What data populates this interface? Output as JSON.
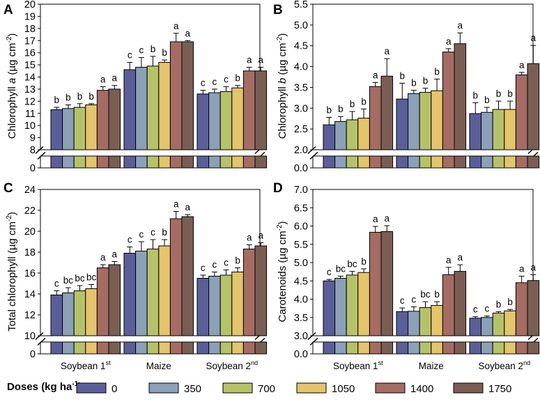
{
  "figure": {
    "legend": {
      "title_main": "Doses (kg ha",
      "title_exp": "-1",
      "title_close": ")",
      "labels": [
        "0",
        "350",
        "700",
        "1050",
        "1400",
        "1750"
      ]
    },
    "colors": [
      "#5b5f99",
      "#8ca0b8",
      "#b6c26a",
      "#e4c46c",
      "#a56c64",
      "#7a5e54"
    ],
    "groups": [
      {
        "base": "Soybean 1",
        "sup": "st"
      },
      {
        "base": "Maize",
        "sup": ""
      },
      {
        "base": "Soybean 2",
        "sup": "nd"
      }
    ]
  },
  "chart_data": [
    {
      "type": "bar",
      "panel_label": "A",
      "ylabel_pre": "Chlorophyll ",
      "ylabel_italic": "a",
      "ylabel_unit": " (µg cm",
      "ylabel_exp": "-2",
      "ylabel_close": ")",
      "upper_ylim": [
        8,
        20
      ],
      "upper_ticks": [
        "8",
        "9",
        "10",
        "11",
        "12",
        "13",
        "14",
        "15",
        "16",
        "17",
        "18",
        "19",
        "20"
      ],
      "lower_tick": "0",
      "series": [
        {
          "group": "Soybean 1st",
          "values": [
            11.3,
            11.4,
            11.5,
            11.7,
            12.9,
            13.0
          ],
          "errors": [
            0.2,
            0.3,
            0.3,
            0.1,
            0.3,
            0.3
          ],
          "letters": [
            "b",
            "b",
            "b",
            "b",
            "a",
            "a"
          ]
        },
        {
          "group": "Maize",
          "values": [
            14.6,
            14.8,
            14.9,
            15.2,
            16.9,
            16.9
          ],
          "errors": [
            0.6,
            0.8,
            0.8,
            0.2,
            0.7,
            0.1
          ],
          "letters": [
            "c",
            "c",
            "b",
            "b",
            "a",
            "a"
          ]
        },
        {
          "group": "Soybean 2nd",
          "values": [
            12.6,
            12.7,
            12.8,
            13.1,
            14.5,
            14.5
          ],
          "errors": [
            0.3,
            0.3,
            0.4,
            0.2,
            0.3,
            0.3
          ],
          "letters": [
            "c",
            "c",
            "c",
            "b",
            "a",
            "a"
          ]
        }
      ]
    },
    {
      "type": "bar",
      "panel_label": "B",
      "ylabel_pre": "Chlorophyll ",
      "ylabel_italic": "b",
      "ylabel_unit": " (µg cm",
      "ylabel_exp": "-2",
      "ylabel_close": ")",
      "upper_ylim": [
        2.0,
        5.5
      ],
      "upper_ticks": [
        "2.0",
        "2.5",
        "3.0",
        "3.5",
        "4.0",
        "4.5",
        "5.0",
        "5.5"
      ],
      "lower_tick": "0.0",
      "series": [
        {
          "group": "Soybean 1st",
          "values": [
            2.6,
            2.68,
            2.72,
            2.76,
            3.52,
            3.77
          ],
          "errors": [
            0.18,
            0.12,
            0.2,
            0.22,
            0.1,
            0.42
          ],
          "letters": [
            "b",
            "b",
            "b",
            "b",
            "a",
            "a"
          ]
        },
        {
          "group": "Maize",
          "values": [
            3.22,
            3.35,
            3.38,
            3.42,
            4.35,
            4.55
          ],
          "errors": [
            0.38,
            0.08,
            0.1,
            0.28,
            0.08,
            0.26
          ],
          "letters": [
            "b",
            "b",
            "b",
            "b",
            "a",
            "a"
          ]
        },
        {
          "group": "Soybean 2nd",
          "values": [
            2.87,
            2.9,
            2.97,
            2.97,
            3.8,
            4.07
          ],
          "errors": [
            0.26,
            0.12,
            0.2,
            0.2,
            0.06,
            0.44
          ],
          "letters": [
            "b",
            "b",
            "b",
            "b",
            "a",
            "a"
          ]
        }
      ]
    },
    {
      "type": "bar",
      "panel_label": "C",
      "ylabel_pre": "Total chlorophyll",
      "ylabel_italic": "",
      "ylabel_unit": " (µg cm",
      "ylabel_exp": "-2",
      "ylabel_close": ")",
      "upper_ylim": [
        10,
        24
      ],
      "upper_ticks": [
        "10",
        "12",
        "14",
        "16",
        "18",
        "20",
        "22",
        "24"
      ],
      "lower_tick": "0",
      "series": [
        {
          "group": "Soybean 1st",
          "values": [
            13.9,
            14.1,
            14.3,
            14.5,
            16.5,
            16.8
          ],
          "errors": [
            0.4,
            0.5,
            0.5,
            0.4,
            0.3,
            0.3
          ],
          "letters": [
            "c",
            "bc",
            "bc",
            "bc",
            "a",
            "a"
          ]
        },
        {
          "group": "Maize",
          "values": [
            17.9,
            18.1,
            18.3,
            18.6,
            21.2,
            21.4
          ],
          "errors": [
            0.6,
            0.9,
            0.9,
            0.6,
            0.7,
            0.2
          ],
          "letters": [
            "c",
            "c",
            "c",
            "b",
            "a",
            "a"
          ]
        },
        {
          "group": "Soybean 2nd",
          "values": [
            15.5,
            15.7,
            15.8,
            16.1,
            18.3,
            18.6
          ],
          "errors": [
            0.3,
            0.4,
            0.5,
            0.4,
            0.4,
            0.3
          ],
          "letters": [
            "c",
            "c",
            "c",
            "b",
            "a",
            "a"
          ]
        }
      ]
    },
    {
      "type": "bar",
      "panel_label": "D",
      "ylabel_pre": "Carotenoids",
      "ylabel_italic": "",
      "ylabel_unit": " (µg cm",
      "ylabel_exp": "-2",
      "ylabel_close": ")",
      "upper_ylim": [
        3.0,
        7.0
      ],
      "upper_ticks": [
        "3.0",
        "3.5",
        "4.0",
        "4.5",
        "5.0",
        "5.5",
        "6.0",
        "6.5",
        "7.0"
      ],
      "lower_tick": "0.0",
      "series": [
        {
          "group": "Soybean 1st",
          "values": [
            4.5,
            4.57,
            4.66,
            4.73,
            5.83,
            5.85
          ],
          "errors": [
            0.04,
            0.06,
            0.1,
            0.1,
            0.16,
            0.16
          ],
          "letters": [
            "c",
            "bc",
            "bc",
            "b",
            "a",
            "a"
          ]
        },
        {
          "group": "Maize",
          "values": [
            3.66,
            3.67,
            3.77,
            3.83,
            4.67,
            4.76
          ],
          "errors": [
            0.1,
            0.12,
            0.16,
            0.1,
            0.2,
            0.18
          ],
          "letters": [
            "c",
            "c",
            "bc",
            "b",
            "a",
            "a"
          ]
        },
        {
          "group": "Soybean 2nd",
          "values": [
            3.48,
            3.5,
            3.62,
            3.68,
            4.45,
            4.51
          ],
          "errors": [
            0.04,
            0.04,
            0.04,
            0.04,
            0.18,
            0.16
          ],
          "letters": [
            "c",
            "c",
            "b",
            "b",
            "a",
            "a"
          ]
        }
      ]
    }
  ]
}
